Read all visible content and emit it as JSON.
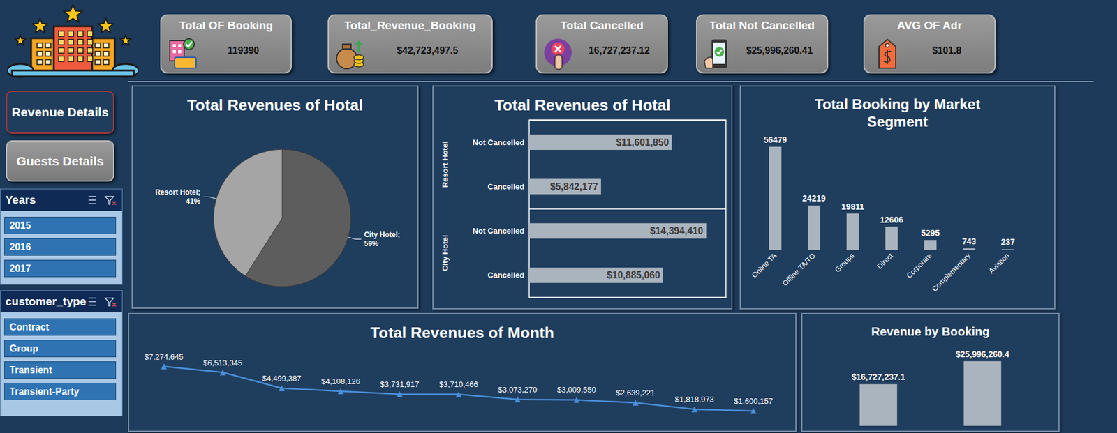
{
  "header": {
    "kpis": [
      {
        "title": "Total OF Booking",
        "value": "119390"
      },
      {
        "title": "Total_Revenue_Booking",
        "value": "$42,723,497.5"
      },
      {
        "title": "Total Cancelled",
        "value": "16,727,237.12"
      },
      {
        "title": "Total Not Cancelled",
        "value": "$25,996,260.41"
      },
      {
        "title": "AVG OF Adr",
        "value": "$101.8"
      }
    ]
  },
  "buttons": [
    "Revenue Details",
    "Guests Details"
  ],
  "slicers": [
    {
      "title": "Years",
      "items": [
        "2015",
        "2016",
        "2017"
      ]
    },
    {
      "title": "customer_type",
      "items": [
        "Contract",
        "Group",
        "Transient",
        "Transient-Party"
      ]
    }
  ],
  "chart_data": [
    {
      "type": "pie",
      "title": "Total Revenues of Hotal",
      "categories": [
        "City Hotel",
        "Resort Hotel"
      ],
      "values": [
        59,
        41
      ],
      "value_labels": [
        "City Hotel;\n59%",
        "Resort Hotel;\n41%"
      ],
      "colors": [
        "#5d5d5d",
        "#a5a5a5"
      ],
      "data_labels": true
    },
    {
      "type": "bar",
      "orientation": "horizontal",
      "title": "Total Revenues of Hotal",
      "categories": [
        "Not Cancelled",
        "Cancelled",
        "Not Cancelled",
        "Cancelled"
      ],
      "groups": [
        "Resort Hotel",
        "Resort Hotel",
        "City Hotel",
        "City Hotel"
      ],
      "values": [
        11601850,
        5842177,
        14394410,
        10885060
      ],
      "value_labels": [
        "$11,601,850",
        "$5,842,177",
        "$14,394,410",
        "$10,885,060"
      ],
      "color": "#aab4be",
      "xlim": [
        0,
        16000000
      ],
      "data_labels": true,
      "tick_labels": "y",
      "grid": false
    },
    {
      "type": "bar",
      "title": "Total Booking by Market Segment",
      "categories": [
        "Online TA",
        "Offline TA/TO",
        "Groups",
        "Direct",
        "Corporate",
        "Complementary",
        "Aviation"
      ],
      "values": [
        56479,
        24219,
        19811,
        12606,
        5295,
        743,
        237
      ],
      "color": "#aab4be",
      "ylim": [
        0,
        60000
      ],
      "data_labels": true,
      "tick_labels": "x",
      "grid": false
    },
    {
      "type": "line",
      "title": "Total Revenues of Month",
      "categories": [
        null,
        null,
        null,
        null,
        null,
        null,
        null,
        null,
        null,
        null,
        null
      ],
      "values": [
        7274645,
        6513345,
        4499387,
        4108126,
        3731917,
        3710466,
        3073270,
        3009550,
        2639221,
        1818973,
        1600157
      ],
      "value_labels": [
        "$7,274,645",
        "$6,513,345",
        "$4,499,387",
        "$4,108,126",
        "$3,731,917",
        "$3,710,466",
        "$3,073,270",
        "$3,009,550",
        "$2,639,221",
        "$1,818,973",
        "$1,600,157"
      ],
      "color": "#4a8fd8",
      "marker": "triangle",
      "ylim": [
        0,
        8000000
      ],
      "data_labels": true,
      "tick_labels": false,
      "grid": false
    },
    {
      "type": "bar",
      "title": "Revenue by Booking",
      "categories": [
        null,
        null
      ],
      "values": [
        16727237.1,
        25996260.4
      ],
      "value_labels": [
        "$16,727,237.1",
        "$25,996,260.4"
      ],
      "color": "#aab4be",
      "ylim": [
        0,
        30000000
      ],
      "data_labels": true,
      "tick_labels": false,
      "grid": false
    }
  ]
}
